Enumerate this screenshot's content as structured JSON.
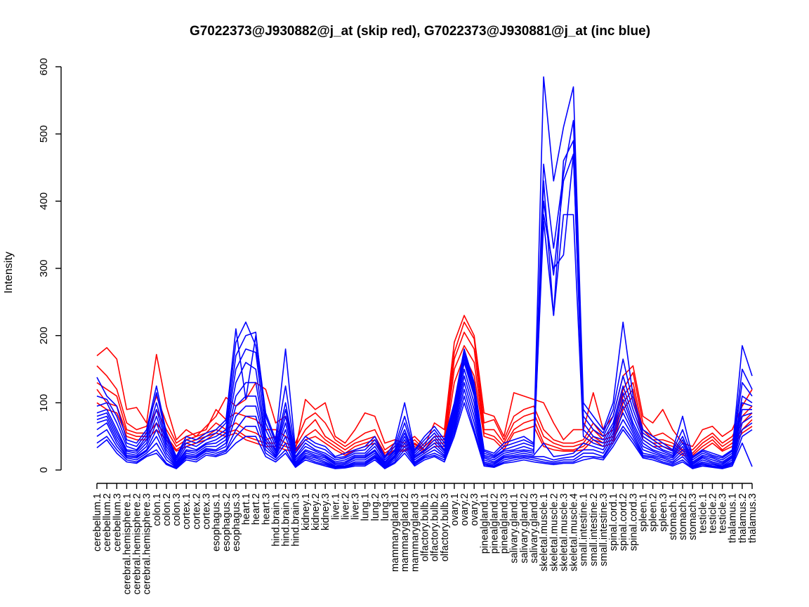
{
  "chart_data": {
    "type": "line",
    "title": "G7022373@J930882@j_at (skip red), G7022373@J930881@j_at (inc blue)",
    "xlabel": "",
    "ylabel": "Intensity",
    "ylim": [
      0,
      600
    ],
    "yticks": [
      0,
      100,
      200,
      300,
      400,
      500,
      600
    ],
    "grid": false,
    "legend": "none",
    "colors": {
      "skip": "#ff0000",
      "inc": "#0000ff"
    },
    "categories": [
      "cerebellum.1",
      "cerebellum.2",
      "cerebellum.3",
      "cerebral.hemisphere.1",
      "cerebral.hemisphere.2",
      "cerebral.hemisphere.3",
      "colon.1",
      "colon.2",
      "colon.3",
      "cortex.1",
      "cortex.2",
      "cortex.3",
      "esophagus.1",
      "esophagus.2",
      "esophagus.3",
      "heart.1",
      "heart.2",
      "heart.3",
      "hind.brain.1",
      "hind.brain.2",
      "hind.brain.3",
      "kidney.1",
      "kidney.2",
      "kidney.3",
      "liver.1",
      "liver.2",
      "liver.3",
      "lung.1",
      "lung.2",
      "lung.3",
      "mammarygland.1",
      "mammarygland.2",
      "mammarygland.3",
      "olfactory.bulb.1",
      "olfactory.bulb.2",
      "olfactory.bulb.3",
      "ovary.1",
      "ovary.2",
      "ovary.3",
      "pinealgland.1",
      "pinealgland.2",
      "pinealgland.3",
      "salivary.gland.1",
      "salivary.gland.2",
      "salivary.gland.3",
      "skeletal.muscle.1",
      "skeletal.muscle.2",
      "skeletal.muscle.3",
      "skeletal.muscle.4",
      "small.intestine.1",
      "small.intestine.2",
      "small.intestine.3",
      "spinal.cord.1",
      "spinal.cord.2",
      "spinal.cord.3",
      "spleen.1",
      "spleen.2",
      "spleen.3",
      "stomach.1",
      "stomach.2",
      "stomach.3",
      "testicle.1",
      "testicle.2",
      "testicle.3",
      "thalamus.1",
      "thalamus.2",
      "thalamus.3"
    ],
    "series": [
      {
        "group": "skip",
        "values": [
          170,
          182,
          165,
          90,
          93,
          70,
          172,
          95,
          45,
          60,
          50,
          65,
          80,
          108,
          95,
          105,
          130,
          120,
          70,
          80,
          30,
          105,
          90,
          100,
          50,
          40,
          60,
          85,
          80,
          40,
          45,
          40,
          50,
          35,
          70,
          60,
          190,
          230,
          200,
          85,
          80,
          50,
          115,
          110,
          105,
          100,
          70,
          45,
          60,
          60,
          115,
          60,
          80,
          140,
          155,
          80,
          70,
          90,
          60,
          40,
          35,
          60,
          65,
          50,
          60,
          95,
          120
        ]
      },
      {
        "group": "skip",
        "values": [
          155,
          140,
          120,
          70,
          60,
          65,
          110,
          70,
          40,
          50,
          55,
          60,
          90,
          75,
          85,
          80,
          75,
          60,
          60,
          50,
          40,
          75,
          85,
          70,
          45,
          35,
          45,
          55,
          60,
          30,
          40,
          35,
          45,
          30,
          50,
          50,
          175,
          220,
          195,
          70,
          75,
          45,
          80,
          90,
          95,
          60,
          45,
          40,
          40,
          45,
          70,
          50,
          60,
          120,
          145,
          70,
          50,
          55,
          45,
          30,
          30,
          45,
          55,
          40,
          50,
          80,
          95
        ]
      },
      {
        "group": "skip",
        "values": [
          130,
          120,
          110,
          60,
          55,
          55,
          90,
          60,
          35,
          45,
          50,
          55,
          70,
          60,
          70,
          60,
          55,
          45,
          50,
          40,
          35,
          60,
          75,
          50,
          40,
          30,
          40,
          45,
          50,
          25,
          35,
          35,
          40,
          30,
          45,
          45,
          165,
          205,
          180,
          60,
          60,
          40,
          70,
          80,
          85,
          50,
          40,
          35,
          35,
          40,
          60,
          45,
          50,
          110,
          130,
          60,
          45,
          45,
          40,
          28,
          25,
          40,
          50,
          35,
          45,
          70,
          85
        ]
      },
      {
        "group": "skip",
        "values": [
          120,
          100,
          95,
          55,
          50,
          50,
          70,
          50,
          30,
          40,
          45,
          50,
          60,
          55,
          60,
          50,
          45,
          40,
          40,
          35,
          30,
          50,
          60,
          45,
          35,
          25,
          35,
          40,
          45,
          22,
          30,
          30,
          38,
          28,
          40,
          40,
          150,
          185,
          160,
          55,
          50,
          35,
          60,
          70,
          75,
          40,
          35,
          30,
          30,
          35,
          50,
          40,
          45,
          100,
          120,
          50,
          40,
          40,
          35,
          25,
          22,
          35,
          45,
          30,
          40,
          60,
          75
        ]
      },
      {
        "group": "skip",
        "values": [
          100,
          90,
          85,
          50,
          45,
          45,
          60,
          45,
          28,
          35,
          40,
          45,
          55,
          50,
          55,
          45,
          40,
          35,
          35,
          30,
          28,
          45,
          50,
          40,
          30,
          22,
          30,
          35,
          40,
          20,
          28,
          28,
          35,
          25,
          35,
          35,
          130,
          170,
          140,
          50,
          45,
          30,
          55,
          60,
          65,
          35,
          30,
          28,
          28,
          30,
          45,
          35,
          40,
          90,
          110,
          45,
          35,
          35,
          30,
          22,
          20,
          30,
          40,
          28,
          35,
          55,
          65
        ]
      },
      {
        "group": "inc",
        "values": [
          138,
          110,
          95,
          45,
          40,
          60,
          125,
          55,
          20,
          50,
          45,
          55,
          60,
          75,
          210,
          105,
          200,
          85,
          45,
          180,
          30,
          50,
          40,
          35,
          20,
          25,
          30,
          35,
          50,
          20,
          40,
          100,
          30,
          50,
          65,
          45,
          100,
          180,
          130,
          30,
          25,
          40,
          45,
          50,
          40,
          585,
          430,
          510,
          570,
          100,
          80,
          60,
          100,
          220,
          110,
          60,
          50,
          40,
          30,
          80,
          20,
          30,
          25,
          20,
          30,
          185,
          140
        ]
      },
      {
        "group": "inc",
        "values": [
          110,
          105,
          80,
          40,
          35,
          55,
          115,
          50,
          18,
          45,
          40,
          50,
          55,
          70,
          190,
          220,
          185,
          80,
          40,
          125,
          25,
          45,
          35,
          30,
          18,
          20,
          28,
          30,
          45,
          18,
          35,
          80,
          28,
          45,
          60,
          40,
          95,
          175,
          125,
          28,
          22,
          35,
          40,
          45,
          38,
          455,
          330,
          440,
          520,
          90,
          70,
          55,
          90,
          165,
          100,
          55,
          45,
          35,
          28,
          60,
          18,
          28,
          22,
          18,
          28,
          150,
          120
        ]
      },
      {
        "group": "inc",
        "values": [
          95,
          100,
          70,
          35,
          30,
          50,
          100,
          45,
          15,
          40,
          35,
          45,
          50,
          60,
          170,
          200,
          205,
          70,
          35,
          100,
          20,
          40,
          30,
          25,
          15,
          18,
          25,
          25,
          40,
          15,
          30,
          70,
          25,
          40,
          55,
          35,
          90,
          170,
          120,
          25,
          20,
          30,
          35,
          40,
          35,
          430,
          230,
          460,
          490,
          80,
          60,
          50,
          80,
          140,
          90,
          50,
          40,
          30,
          25,
          50,
          15,
          25,
          20,
          15,
          25,
          130,
          110
        ]
      },
      {
        "group": "inc",
        "values": [
          85,
          90,
          60,
          30,
          28,
          45,
          90,
          40,
          12,
          35,
          30,
          40,
          45,
          55,
          150,
          180,
          175,
          60,
          30,
          90,
          18,
          35,
          28,
          22,
          12,
          15,
          22,
          22,
          35,
          12,
          28,
          60,
          22,
          35,
          50,
          30,
          85,
          165,
          115,
          22,
          18,
          28,
          30,
          35,
          30,
          400,
          290,
          430,
          470,
          70,
          50,
          45,
          70,
          125,
          80,
          45,
          35,
          28,
          22,
          45,
          12,
          22,
          18,
          12,
          22,
          110,
          100
        ]
      },
      {
        "group": "inc",
        "values": [
          80,
          85,
          55,
          28,
          25,
          40,
          80,
          35,
          10,
          30,
          28,
          38,
          40,
          50,
          130,
          160,
          150,
          50,
          28,
          80,
          15,
          30,
          25,
          20,
          10,
          12,
          20,
          20,
          30,
          10,
          25,
          55,
          20,
          30,
          45,
          28,
          80,
          160,
          110,
          20,
          15,
          25,
          28,
          30,
          28,
          380,
          300,
          320,
          470,
          60,
          45,
          40,
          65,
          115,
          70,
          40,
          30,
          25,
          20,
          40,
          10,
          20,
          15,
          10,
          20,
          100,
          95
        ]
      },
      {
        "group": "inc",
        "values": [
          75,
          80,
          50,
          25,
          22,
          35,
          70,
          30,
          8,
          28,
          25,
          35,
          35,
          45,
          110,
          130,
          130,
          45,
          25,
          70,
          12,
          28,
          22,
          18,
          8,
          10,
          18,
          18,
          28,
          8,
          22,
          50,
          18,
          28,
          40,
          25,
          75,
          150,
          100,
          18,
          12,
          22,
          25,
          28,
          25,
          370,
          230,
          380,
          380,
          50,
          40,
          35,
          60,
          105,
          65,
          35,
          28,
          22,
          18,
          35,
          8,
          18,
          12,
          8,
          18,
          90,
          90
        ]
      },
      {
        "group": "inc",
        "values": [
          70,
          75,
          45,
          22,
          20,
          30,
          60,
          25,
          6,
          25,
          22,
          32,
          30,
          40,
          95,
          110,
          110,
          40,
          22,
          60,
          10,
          25,
          20,
          15,
          6,
          8,
          15,
          15,
          25,
          6,
          20,
          45,
          15,
          25,
          35,
          22,
          70,
          140,
          90,
          15,
          10,
          20,
          22,
          25,
          22,
          40,
          20,
          22,
          25,
          40,
          35,
          30,
          55,
          95,
          60,
          30,
          25,
          20,
          15,
          30,
          6,
          15,
          10,
          6,
          15,
          80,
          85
        ]
      },
      {
        "group": "inc",
        "values": [
          60,
          70,
          40,
          20,
          18,
          28,
          50,
          20,
          5,
          22,
          20,
          30,
          28,
          35,
          80,
          95,
          95,
          35,
          20,
          50,
          8,
          22,
          18,
          12,
          5,
          6,
          12,
          12,
          22,
          5,
          18,
          40,
          12,
          22,
          30,
          20,
          65,
          130,
          80,
          12,
          8,
          18,
          20,
          22,
          20,
          20,
          15,
          18,
          20,
          30,
          30,
          25,
          50,
          85,
          55,
          25,
          22,
          18,
          12,
          25,
          5,
          12,
          8,
          5,
          12,
          70,
          80
        ]
      },
      {
        "group": "inc",
        "values": [
          50,
          60,
          35,
          18,
          15,
          25,
          40,
          15,
          4,
          20,
          18,
          28,
          25,
          30,
          60,
          80,
          80,
          30,
          18,
          40,
          6,
          20,
          15,
          10,
          4,
          5,
          10,
          10,
          20,
          4,
          15,
          35,
          10,
          20,
          25,
          18,
          60,
          120,
          70,
          10,
          6,
          15,
          18,
          20,
          18,
          15,
          12,
          15,
          15,
          25,
          25,
          20,
          45,
          75,
          50,
          22,
          20,
          15,
          10,
          20,
          4,
          10,
          6,
          4,
          10,
          60,
          70
        ]
      },
      {
        "group": "inc",
        "values": [
          40,
          50,
          30,
          15,
          12,
          22,
          30,
          10,
          3,
          18,
          15,
          25,
          22,
          28,
          50,
          65,
          65,
          25,
          15,
          30,
          5,
          18,
          12,
          8,
          3,
          4,
          8,
          8,
          18,
          3,
          12,
          30,
          8,
          18,
          22,
          15,
          55,
          110,
          60,
          8,
          5,
          12,
          15,
          18,
          15,
          12,
          10,
          12,
          12,
          20,
          20,
          18,
          40,
          65,
          45,
          20,
          18,
          12,
          8,
          15,
          3,
          8,
          5,
          3,
          8,
          50,
          60
        ]
      },
      {
        "group": "inc",
        "values": [
          33,
          45,
          25,
          12,
          10,
          20,
          25,
          8,
          2,
          15,
          12,
          22,
          20,
          25,
          40,
          50,
          50,
          20,
          12,
          25,
          4,
          15,
          10,
          6,
          2,
          3,
          6,
          6,
          15,
          2,
          10,
          25,
          6,
          15,
          20,
          12,
          50,
          100,
          55,
          6,
          4,
          10,
          12,
          15,
          12,
          10,
          8,
          10,
          10,
          15,
          18,
          15,
          35,
          60,
          40,
          18,
          15,
          10,
          6,
          12,
          2,
          6,
          4,
          2,
          6,
          40,
          5
        ]
      }
    ]
  }
}
